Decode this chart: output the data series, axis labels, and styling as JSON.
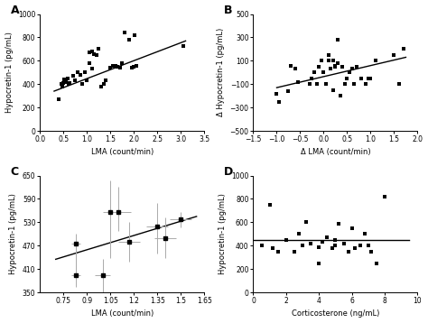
{
  "panel_A": {
    "label": "A",
    "scatter_x": [
      0.4,
      0.45,
      0.48,
      0.5,
      0.52,
      0.55,
      0.58,
      0.6,
      0.62,
      0.7,
      0.75,
      0.8,
      0.85,
      0.9,
      0.95,
      1.0,
      1.05,
      1.05,
      1.1,
      1.1,
      1.15,
      1.2,
      1.25,
      1.3,
      1.35,
      1.4,
      1.5,
      1.55,
      1.6,
      1.65,
      1.7,
      1.75,
      1.8,
      1.9,
      1.95,
      2.0,
      2.02,
      2.05,
      3.05
    ],
    "scatter_y": [
      270,
      400,
      380,
      410,
      440,
      420,
      450,
      400,
      410,
      470,
      430,
      500,
      480,
      400,
      500,
      430,
      580,
      670,
      530,
      680,
      660,
      650,
      700,
      380,
      400,
      430,
      540,
      560,
      560,
      550,
      540,
      580,
      840,
      780,
      540,
      550,
      820,
      560,
      730
    ],
    "line_x": [
      0.3,
      3.1
    ],
    "line_y": [
      340,
      770
    ],
    "xlabel": "LMA (count/min)",
    "ylabel": "Hypocretin-1 (pg/mL)",
    "xlim": [
      0.0,
      3.5
    ],
    "ylim": [
      0,
      1000
    ],
    "xticks": [
      0.0,
      0.5,
      1.0,
      1.5,
      2.0,
      2.5,
      3.0,
      3.5
    ],
    "yticks": [
      0,
      200,
      400,
      600,
      800,
      1000
    ]
  },
  "panel_B": {
    "label": "B",
    "scatter_x": [
      -1.0,
      -0.95,
      -0.75,
      -0.7,
      -0.6,
      -0.55,
      -0.3,
      -0.25,
      -0.2,
      -0.15,
      -0.1,
      -0.05,
      0.0,
      0.05,
      0.1,
      0.1,
      0.15,
      0.2,
      0.2,
      0.25,
      0.25,
      0.3,
      0.3,
      0.35,
      0.4,
      0.45,
      0.5,
      0.55,
      0.6,
      0.65,
      0.7,
      0.8,
      0.9,
      0.95,
      1.0,
      1.1,
      1.5,
      1.6,
      1.7
    ],
    "scatter_y": [
      -180,
      -250,
      -160,
      60,
      30,
      -80,
      -100,
      -50,
      0,
      -100,
      50,
      100,
      0,
      -100,
      100,
      150,
      30,
      -150,
      100,
      50,
      60,
      80,
      280,
      -200,
      50,
      -100,
      -50,
      0,
      30,
      -100,
      50,
      -50,
      -100,
      -50,
      -50,
      100,
      150,
      -100,
      200
    ],
    "line_x": [
      -1.0,
      1.75
    ],
    "line_y": [
      -130,
      130
    ],
    "xlabel": "Δ LMA (count/min)",
    "ylabel": "Δ Hypocretin-1 (pg/mL)",
    "xlim": [
      -1.5,
      2.0
    ],
    "ylim": [
      -500,
      500
    ],
    "xticks": [
      -1.5,
      -1.0,
      -0.5,
      0.0,
      0.5,
      1.0,
      1.5,
      2.0
    ],
    "yticks": [
      -500,
      -300,
      -100,
      100,
      300,
      500
    ]
  },
  "panel_C": {
    "label": "C",
    "scatter_x": [
      0.83,
      0.83,
      1.0,
      1.05,
      1.1,
      1.17,
      1.35,
      1.4,
      1.5
    ],
    "scatter_y": [
      395,
      475,
      395,
      557,
      557,
      480,
      520,
      488,
      537
    ],
    "xerr_lo": [
      0.03,
      0.03,
      0.05,
      0.05,
      0.08,
      0.07,
      0.07,
      0.07,
      0.07
    ],
    "xerr_hi": [
      0.03,
      0.03,
      0.05,
      0.05,
      0.08,
      0.07,
      0.07,
      0.07,
      0.07
    ],
    "yerr_lo": [
      30,
      65,
      130,
      120,
      50,
      50,
      70,
      50,
      20
    ],
    "yerr_hi": [
      75,
      25,
      40,
      80,
      65,
      50,
      60,
      55,
      20
    ],
    "line_x": [
      0.7,
      1.6
    ],
    "line_y": [
      435,
      545
    ],
    "xlabel": "LMA (count/min)",
    "ylabel": "Hypocretin-1 (pg/mL)",
    "xlim": [
      0.6,
      1.65
    ],
    "ylim": [
      350,
      650
    ],
    "xticks": [
      0.75,
      0.9,
      1.05,
      1.2,
      1.35,
      1.5,
      1.65
    ],
    "yticks": [
      350,
      410,
      470,
      530,
      590,
      650
    ]
  },
  "panel_D": {
    "label": "D",
    "scatter_x": [
      0.5,
      1.0,
      1.2,
      1.5,
      2.0,
      2.5,
      2.8,
      3.0,
      3.2,
      3.5,
      4.0,
      4.0,
      4.2,
      4.5,
      4.8,
      5.0,
      5.0,
      5.2,
      5.5,
      5.8,
      6.0,
      6.2,
      6.5,
      6.8,
      7.0,
      7.2,
      7.5,
      8.0
    ],
    "scatter_y": [
      400,
      750,
      380,
      350,
      450,
      350,
      500,
      400,
      600,
      420,
      250,
      390,
      430,
      470,
      380,
      400,
      450,
      590,
      420,
      350,
      550,
      380,
      400,
      500,
      400,
      350,
      250,
      820
    ],
    "line_x": [
      0,
      9.5
    ],
    "line_y": [
      450,
      450
    ],
    "xlabel": "Corticosterone (ng/mL)",
    "ylabel": "Hypocretin-1 (pg/mL)",
    "xlim": [
      0,
      10
    ],
    "ylim": [
      0,
      1000
    ],
    "xticks": [
      0,
      2,
      4,
      6,
      8,
      10
    ],
    "yticks": [
      0,
      200,
      400,
      600,
      800,
      1000
    ]
  },
  "marker_size": 2.5,
  "line_color": "black",
  "marker_color": "black",
  "background_color": "white"
}
